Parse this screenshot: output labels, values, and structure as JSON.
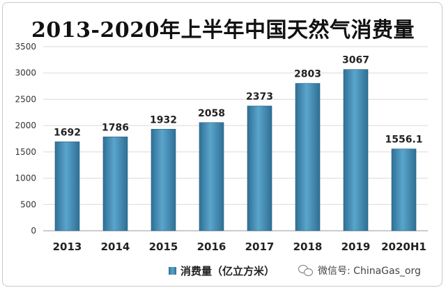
{
  "chart_data": {
    "type": "bar",
    "title": "2013-2020年上半年中国天然气消费量",
    "categories": [
      "2013",
      "2014",
      "2015",
      "2016",
      "2017",
      "2018",
      "2019",
      "2020H1"
    ],
    "series": [
      {
        "name": "消费量（亿立方米）",
        "values": [
          1692,
          1786,
          1932,
          2058,
          2373,
          2803,
          3067,
          1556.1
        ]
      }
    ],
    "data_labels": [
      "1692",
      "1786",
      "1932",
      "2058",
      "2373",
      "2803",
      "3067",
      "1556.1"
    ],
    "yticks": [
      0,
      500,
      1000,
      1500,
      2000,
      2500,
      3000,
      3500
    ],
    "ylim": [
      0,
      3500
    ],
    "grid": true,
    "legend_position": "bottom",
    "bar_color": "#4a93ba"
  },
  "watermark": {
    "text": "微信号: ChinaGas_org",
    "icon": "wechat-icon"
  }
}
